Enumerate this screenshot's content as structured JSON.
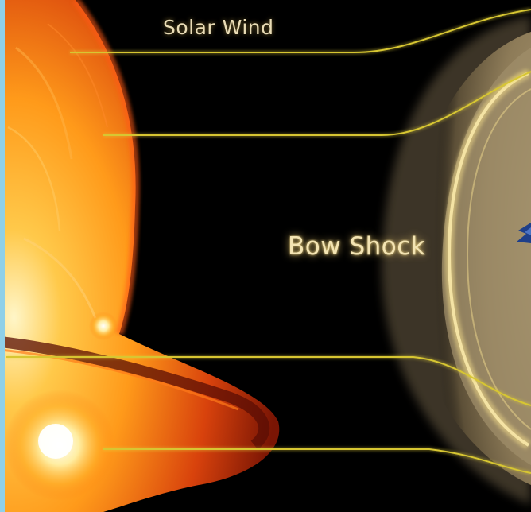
{
  "labels": {
    "solar_wind": "Solar Wind",
    "bow_shock": "Bow Shock"
  },
  "colors": {
    "background": "#000000",
    "left_edge": "#8fd0e8",
    "sun_core": "#fff6c8",
    "sun_mid": "#ff9a1a",
    "sun_edge": "#c0290a",
    "magnetosheath": "#8a7a5a",
    "bow_shock_glow": "#f3dc8a",
    "field_line": "#d7c632",
    "earth_marker": "#1e3f8a"
  },
  "icons": {
    "earth": "earth-marker-icon"
  }
}
